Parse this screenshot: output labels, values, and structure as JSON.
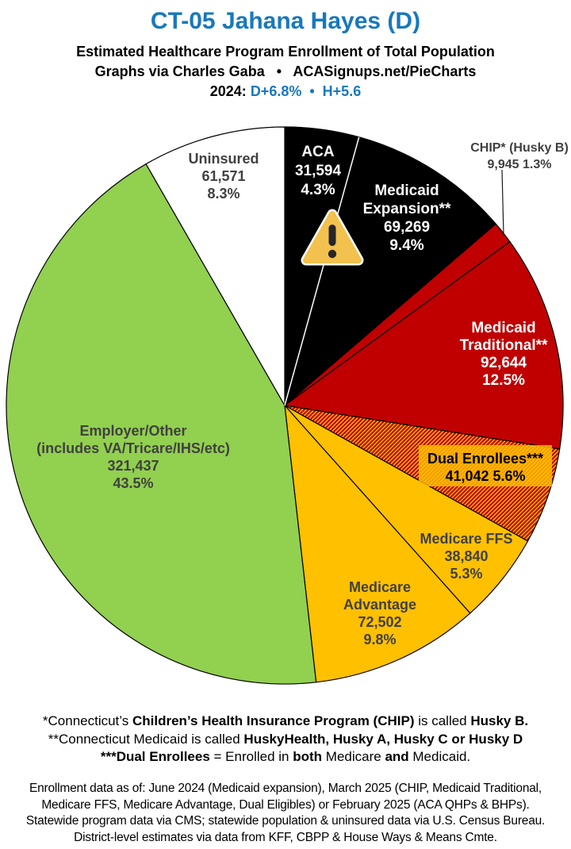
{
  "colors": {
    "accent_blue": "#1878BE",
    "black": "#000000",
    "red": "#C00000",
    "gold": "#FFC000",
    "green": "#92D050",
    "white": "#FFFFFF",
    "label_gray": "#404040",
    "warning_amber": "#F2C14E",
    "warning_dark": "#262626"
  },
  "header": {
    "title": "CT-05 Jahana Hayes (D)",
    "subtitle": "Estimated Healthcare Program Enrollment of Total Population",
    "byline": "Graphs via Charles Gaba   •   ACASignups.net/PieCharts",
    "partisan_segments": [
      {
        "text": "2024: ",
        "color": "#000000"
      },
      {
        "text": "D+6.8%",
        "color": "#1878BE"
      },
      {
        "text": "  •  ",
        "color": "#1878BE"
      },
      {
        "text": "H+5.6",
        "color": "#1878BE"
      }
    ]
  },
  "icons": {
    "warning_triangle": "⚠"
  },
  "chart_data": {
    "type": "pie",
    "title": "Estimated Healthcare Program Enrollment of Total Population",
    "units": "people",
    "start_angle_deg_from_north": 0,
    "direction": "clockwise",
    "labels_position": "on-slices",
    "slices": [
      {
        "name": "ACA",
        "value": 31594,
        "pct": 4.3,
        "color": "#000000",
        "label_lines": [
          "ACA",
          "31,594",
          "4.3%"
        ],
        "label_color": "#FFFFFF",
        "has_warning_icon": true
      },
      {
        "name": "Medicaid Expansion**",
        "value": 69269,
        "pct": 9.4,
        "color": "#000000",
        "label_lines": [
          "Medicaid",
          "Expansion**",
          "69,269",
          "9.4%"
        ],
        "label_color": "#FFFFFF"
      },
      {
        "name": "CHIP* (Husky B)",
        "value": 9945,
        "pct": 1.3,
        "color": "#C00000",
        "label_lines": [
          "CHIP* (Husky B)",
          "9,945 1.3%"
        ],
        "label_color": "#404040",
        "label_outside": true
      },
      {
        "name": "Medicaid Traditional**",
        "value": 92644,
        "pct": 12.5,
        "color": "#C00000",
        "label_lines": [
          "Medicaid",
          "Traditional**",
          "92,644",
          "12.5%"
        ],
        "label_color": "#FFFFFF"
      },
      {
        "name": "Dual Enrollees***",
        "value": 41042,
        "pct": 5.6,
        "color": "hatch:red-gold",
        "label_lines": [
          "Dual Enrollees***",
          "41,042 5.6%"
        ],
        "label_color": "#000000",
        "label_box_color": "#FFC000"
      },
      {
        "name": "Medicare FFS",
        "value": 38840,
        "pct": 5.3,
        "color": "#FFC000",
        "label_lines": [
          "Medicare FFS",
          "38,840",
          "5.3%"
        ],
        "label_color": "#404040"
      },
      {
        "name": "Medicare Advantage",
        "value": 72502,
        "pct": 9.8,
        "color": "#FFC000",
        "label_lines": [
          "Medicare",
          "Advantage",
          "72,502",
          "9.8%"
        ],
        "label_color": "#404040"
      },
      {
        "name": "Employer/Other (includes VA/Tricare/IHS/etc)",
        "value": 321437,
        "pct": 43.5,
        "color": "#92D050",
        "label_lines": [
          "Employer/Other",
          "(includes VA/Tricare/IHS/etc)",
          "321,437",
          "43.5%"
        ],
        "label_color": "#404040"
      },
      {
        "name": "Uninsured",
        "value": 61571,
        "pct": 8.3,
        "color": "#FFFFFF",
        "label_lines": [
          "Uninsured",
          "61,571",
          "8.3%"
        ],
        "label_color": "#404040"
      }
    ]
  },
  "footnotes": [
    [
      {
        "t": "*Connecticut’s ",
        "b": false
      },
      {
        "t": "Children’s Health Insurance Program (CHIP)",
        "b": true
      },
      {
        "t": " is called ",
        "b": false
      },
      {
        "t": "Husky B.",
        "b": true
      }
    ],
    [
      {
        "t": "**Connecticut Medicaid is called ",
        "b": false
      },
      {
        "t": "HuskyHealth, Husky A, Husky C or Husky D",
        "b": true
      }
    ],
    [
      {
        "t": "***Dual Enrollees",
        "b": true
      },
      {
        "t": " = Enrolled in ",
        "b": false
      },
      {
        "t": "both",
        "b": true
      },
      {
        "t": " Medicare ",
        "b": false
      },
      {
        "t": "and",
        "b": true
      },
      {
        "t": " Medicaid.",
        "b": false
      }
    ]
  ],
  "source_lines": [
    "Enrollment data as of: June 2024 (Medicaid expansion), March 2025 (CHIP, Medicaid Traditional,",
    "Medicare FFS, Medicare Advantage, Dual Eligibles) or February 2025 (ACA QHPs & BHPs).",
    "Statewide program data via CMS; statewide population & uninsured data via U.S. Census Bureau.",
    "District-level estimates via data from KFF, CBPP & House Ways & Means Cmte."
  ]
}
